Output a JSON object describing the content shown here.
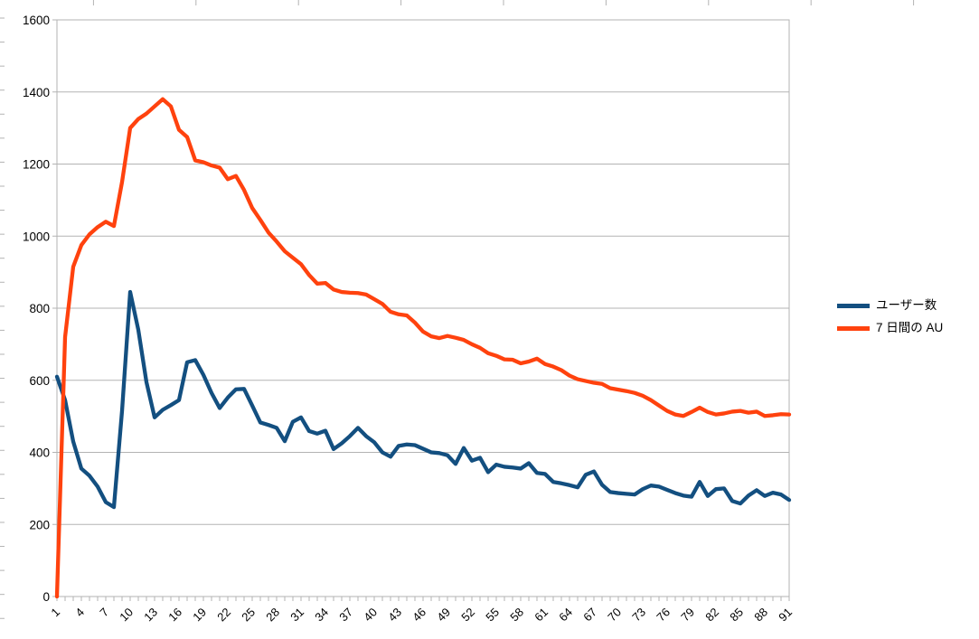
{
  "chart_data": {
    "type": "line",
    "title": "",
    "xlabel": "",
    "ylabel": "",
    "x_axis_range": [
      1,
      91
    ],
    "ylim": [
      0,
      1600
    ],
    "grid": true,
    "legend_position": "right",
    "y_tick_labels": [
      0,
      200,
      400,
      600,
      800,
      1000,
      1200,
      1400,
      1600
    ],
    "x_tick_labels": [
      1,
      4,
      7,
      10,
      13,
      16,
      19,
      22,
      25,
      28,
      31,
      34,
      37,
      40,
      43,
      46,
      49,
      52,
      55,
      58,
      61,
      64,
      67,
      70,
      73,
      76,
      79,
      82,
      85,
      88,
      91
    ],
    "x": [
      1,
      2,
      3,
      4,
      5,
      6,
      7,
      8,
      9,
      10,
      11,
      12,
      13,
      14,
      15,
      16,
      17,
      18,
      19,
      20,
      21,
      22,
      23,
      24,
      25,
      26,
      27,
      28,
      29,
      30,
      31,
      32,
      33,
      34,
      35,
      36,
      37,
      38,
      39,
      40,
      41,
      42,
      43,
      44,
      45,
      46,
      47,
      48,
      49,
      50,
      51,
      52,
      53,
      54,
      55,
      56,
      57,
      58,
      59,
      60,
      61,
      62,
      63,
      64,
      65,
      66,
      67,
      68,
      69,
      70,
      71,
      72,
      73,
      74,
      75,
      76,
      77,
      78,
      79,
      80,
      81,
      82,
      83,
      84,
      85,
      86,
      87,
      88,
      89,
      90,
      91
    ],
    "series": [
      {
        "name": "ユーザー数",
        "color": "#134F80",
        "values": [
          610,
          545,
          430,
          355,
          335,
          305,
          262,
          248,
          515,
          845,
          740,
          595,
          497,
          518,
          531,
          545,
          650,
          656,
          615,
          565,
          523,
          552,
          575,
          576,
          530,
          483,
          476,
          468,
          431,
          485,
          497,
          459,
          452,
          460,
          409,
          425,
          445,
          468,
          445,
          428,
          400,
          388,
          418,
          422,
          420,
          410,
          400,
          398,
          392,
          368,
          412,
          377,
          385,
          345,
          366,
          360,
          358,
          355,
          370,
          343,
          340,
          318,
          314,
          309,
          303,
          338,
          347,
          310,
          290,
          287,
          285,
          283,
          298,
          308,
          305,
          296,
          287,
          280,
          277,
          318,
          279,
          298,
          300,
          265,
          258,
          280,
          295,
          279,
          288,
          283,
          268
        ]
      },
      {
        "name": "7 日間の AU",
        "color": "#FF420E",
        "values": [
          0,
          720,
          915,
          975,
          1005,
          1025,
          1040,
          1028,
          1150,
          1300,
          1325,
          1340,
          1360,
          1380,
          1360,
          1295,
          1275,
          1210,
          1205,
          1196,
          1190,
          1158,
          1167,
          1128,
          1078,
          1045,
          1010,
          985,
          958,
          940,
          922,
          892,
          868,
          870,
          852,
          845,
          843,
          842,
          838,
          825,
          812,
          790,
          783,
          780,
          760,
          735,
          722,
          717,
          723,
          718,
          712,
          700,
          690,
          675,
          668,
          658,
          657,
          647,
          652,
          660,
          645,
          638,
          628,
          613,
          603,
          598,
          593,
          590,
          578,
          574,
          570,
          565,
          557,
          545,
          530,
          515,
          505,
          501,
          512,
          524,
          512,
          505,
          508,
          513,
          515,
          510,
          513,
          501,
          503,
          506,
          505
        ]
      }
    ],
    "axis_color": "#b3b3b3",
    "grid_color": "#b3b3b3",
    "tick_label_color": "#000000"
  }
}
